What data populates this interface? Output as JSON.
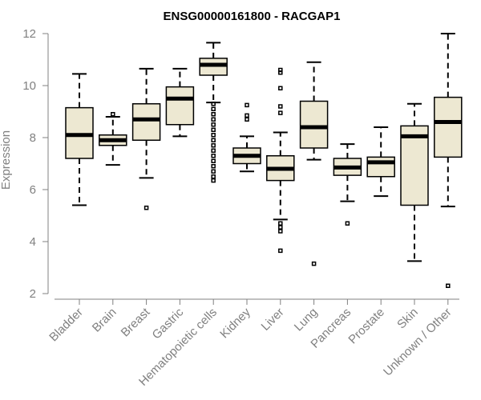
{
  "chart_data": {
    "type": "boxplot",
    "title": "ENSG00000161800 - RACGAP1",
    "xlabel": "",
    "ylabel": "Expression",
    "ylim": [
      2,
      12
    ],
    "yticks": [
      2,
      4,
      6,
      8,
      10,
      12
    ],
    "box_color": "#EDE8D2",
    "categories": [
      "Bladder",
      "Brain",
      "Breast",
      "Gastric",
      "Hematopoietic cells",
      "Kidney",
      "Liver",
      "Lung",
      "Pancreas",
      "Prostate",
      "Skin",
      "Unknown / Other"
    ],
    "boxes": [
      {
        "min": 5.4,
        "q1": 7.2,
        "median": 8.1,
        "q3": 9.15,
        "max": 10.45,
        "outliers": []
      },
      {
        "min": 6.95,
        "q1": 7.7,
        "median": 7.9,
        "q3": 8.1,
        "max": 8.8,
        "outliers": [
          8.9
        ]
      },
      {
        "min": 6.45,
        "q1": 7.9,
        "median": 8.7,
        "q3": 9.3,
        "max": 10.65,
        "outliers": [
          5.3
        ]
      },
      {
        "min": 8.05,
        "q1": 8.5,
        "median": 9.5,
        "q3": 9.95,
        "max": 10.65,
        "outliers": []
      },
      {
        "min": 9.35,
        "q1": 10.4,
        "median": 10.8,
        "q3": 11.05,
        "max": 11.65,
        "outliers": [
          9.3,
          9.1,
          8.9,
          8.7,
          8.5,
          8.3,
          8.1,
          7.9,
          7.7,
          7.5,
          7.3,
          7.1,
          6.9,
          6.7,
          6.5,
          6.35
        ]
      },
      {
        "min": 6.7,
        "q1": 7.0,
        "median": 7.3,
        "q3": 7.6,
        "max": 8.05,
        "outliers": [
          8.7,
          8.85,
          9.25
        ]
      },
      {
        "min": 4.85,
        "q1": 6.35,
        "median": 6.8,
        "q3": 7.3,
        "max": 8.2,
        "outliers": [
          3.65,
          4.4,
          4.55,
          4.7,
          8.95,
          9.2,
          9.9,
          10.5,
          10.6
        ]
      },
      {
        "min": 7.15,
        "q1": 7.6,
        "median": 8.4,
        "q3": 9.4,
        "max": 10.9,
        "outliers": [
          3.15
        ]
      },
      {
        "min": 5.55,
        "q1": 6.55,
        "median": 6.85,
        "q3": 7.2,
        "max": 7.75,
        "outliers": [
          4.7
        ]
      },
      {
        "min": 5.75,
        "q1": 6.5,
        "median": 7.05,
        "q3": 7.25,
        "max": 8.4,
        "outliers": []
      },
      {
        "min": 3.25,
        "q1": 5.4,
        "median": 8.05,
        "q3": 8.45,
        "max": 9.3,
        "outliers": []
      },
      {
        "min": 5.35,
        "q1": 7.25,
        "median": 8.6,
        "q3": 9.55,
        "max": 12.0,
        "outliers": [
          2.3
        ]
      }
    ]
  }
}
